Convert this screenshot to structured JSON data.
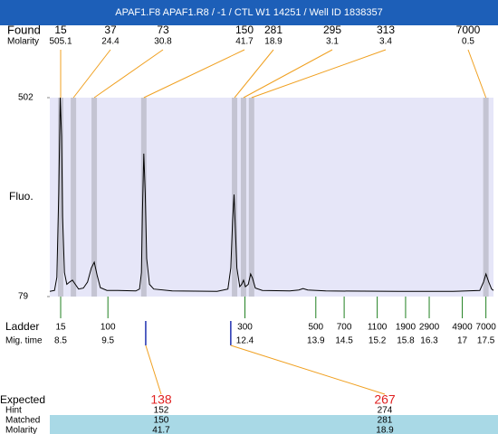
{
  "chart_data": {
    "type": "line",
    "title": "APAF1.F8  APAF1.R8 / -1 / CTL W1 14251 / Well ID 1838357",
    "y_label": "Fluo.",
    "found_label": "Found",
    "molarity_label": "Molarity",
    "ladder_label": "Ladder",
    "mig_time_label": "Mig. time",
    "expected_label": "Expected",
    "hint_label": "Hint",
    "matched_label": "Matched",
    "match_molarity_label": "Molarity",
    "xlim": [
      8.27,
      17.66
    ],
    "ylim": [
      79,
      502
    ],
    "yticks": [
      79,
      502
    ],
    "color": "#000000",
    "x": [
      8.27,
      8.37,
      8.42,
      8.46,
      8.49,
      8.52,
      8.54,
      8.58,
      8.63,
      8.69,
      8.75,
      8.81,
      8.88,
      8.98,
      9.07,
      9.15,
      9.21,
      9.27,
      9.34,
      9.48,
      9.71,
      10.09,
      10.17,
      10.21,
      10.23,
      10.26,
      10.29,
      10.32,
      10.38,
      10.47,
      10.86,
      11.81,
      12.04,
      12.1,
      12.14,
      12.17,
      12.19,
      12.23,
      12.29,
      12.33,
      12.37,
      12.41,
      12.47,
      12.52,
      12.56,
      12.62,
      12.77,
      13.35,
      13.54,
      13.63,
      13.73,
      14.11,
      15.65,
      16.8,
      17.37,
      17.45,
      17.5,
      17.56,
      17.62,
      17.66
    ],
    "values": [
      90,
      92,
      120,
      300,
      502,
      420,
      250,
      130,
      105,
      110,
      114,
      105,
      95,
      97,
      110,
      140,
      152,
      125,
      98,
      92,
      92,
      91,
      95,
      130,
      260,
      383,
      300,
      160,
      105,
      95,
      91,
      90,
      95,
      140,
      240,
      296,
      240,
      140,
      100,
      105,
      114,
      100,
      105,
      127,
      118,
      97,
      92,
      91,
      93,
      96,
      93,
      91,
      90,
      90,
      92,
      110,
      127,
      110,
      95,
      92
    ],
    "found": [
      {
        "size": 15,
        "molarity": 505.1,
        "time": 8.5
      },
      {
        "size": 37,
        "molarity": 24.4,
        "time": 8.77
      },
      {
        "size": 73,
        "molarity": 30.8,
        "time": 9.21
      },
      {
        "size": 150,
        "molarity": 41.7,
        "time": 10.26
      },
      {
        "size": 281,
        "molarity": 18.9,
        "time": 12.18
      },
      {
        "size": 295,
        "molarity": 3.1,
        "time": 12.37
      },
      {
        "size": 313,
        "molarity": 3.4,
        "time": 12.54
      },
      {
        "size": 7000,
        "molarity": 0.5,
        "time": 17.5
      }
    ],
    "ladder": [
      {
        "size": 15,
        "mig_time": 8.5
      },
      {
        "size": 100,
        "mig_time": 9.5
      },
      {
        "size": 300,
        "mig_time": 12.4
      },
      {
        "size": 500,
        "mig_time": 13.9
      },
      {
        "size": 700,
        "mig_time": 14.5
      },
      {
        "size": 1100,
        "mig_time": 15.2
      },
      {
        "size": 1900,
        "mig_time": 15.8
      },
      {
        "size": 2900,
        "mig_time": 16.3
      },
      {
        "size": 4900,
        "mig_time": 17
      },
      {
        "size": 7000,
        "mig_time": 17.5
      }
    ],
    "expected": [
      {
        "expected": 138,
        "hint": 152,
        "matched": 150,
        "molarity": 41.7,
        "time": 10.3
      },
      {
        "expected": 267,
        "hint": 274,
        "matched": 281,
        "molarity": 18.9,
        "time": 12.1
      }
    ]
  }
}
